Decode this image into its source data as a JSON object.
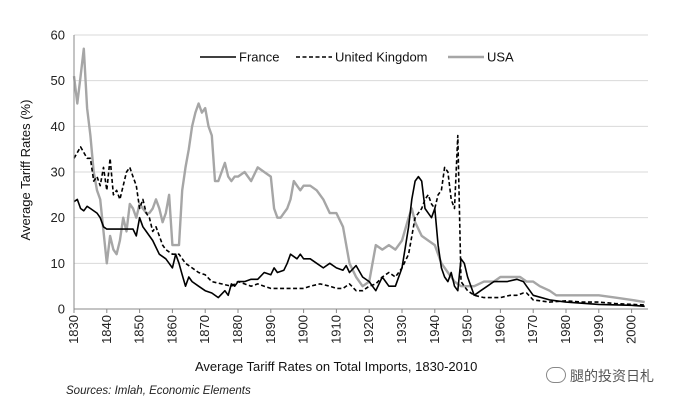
{
  "chart_data": {
    "type": "line",
    "title": "Average Tariff Rates on Total Imports, 1830-2010",
    "xlabel": "Average Tariff Rates on Total Imports, 1830-2010",
    "ylabel": "Average Tariff Rates (%)",
    "xlim": [
      1830,
      2005
    ],
    "ylim": [
      0,
      60
    ],
    "x_ticks": [
      1830,
      1840,
      1850,
      1860,
      1870,
      1880,
      1890,
      1900,
      1910,
      1920,
      1930,
      1940,
      1950,
      1960,
      1970,
      1980,
      1990,
      2000
    ],
    "y_ticks": [
      0,
      10,
      20,
      30,
      40,
      50,
      60
    ],
    "legend_position": "top-center",
    "series": [
      {
        "name": "France",
        "color": "#000000",
        "style": "solid",
        "points": [
          [
            1830,
            23.5
          ],
          [
            1831,
            24
          ],
          [
            1832,
            22
          ],
          [
            1833,
            21.5
          ],
          [
            1834,
            22.5
          ],
          [
            1835,
            22
          ],
          [
            1837,
            21
          ],
          [
            1838,
            20
          ],
          [
            1839,
            18
          ],
          [
            1840,
            17.5
          ],
          [
            1845,
            17.5
          ],
          [
            1848,
            17.5
          ],
          [
            1849,
            16
          ],
          [
            1850,
            20
          ],
          [
            1851,
            18
          ],
          [
            1852,
            17
          ],
          [
            1853,
            16
          ],
          [
            1854,
            15
          ],
          [
            1856,
            12
          ],
          [
            1858,
            11
          ],
          [
            1859,
            10
          ],
          [
            1860,
            9
          ],
          [
            1861,
            12
          ],
          [
            1862,
            10
          ],
          [
            1863,
            7.5
          ],
          [
            1864,
            5
          ],
          [
            1865,
            7
          ],
          [
            1866,
            6
          ],
          [
            1868,
            5
          ],
          [
            1870,
            4
          ],
          [
            1872,
            3.5
          ],
          [
            1874,
            2.5
          ],
          [
            1876,
            4
          ],
          [
            1877,
            3
          ],
          [
            1878,
            5.5
          ],
          [
            1879,
            5
          ],
          [
            1880,
            6
          ],
          [
            1882,
            6
          ],
          [
            1884,
            6.5
          ],
          [
            1886,
            6.5
          ],
          [
            1888,
            8
          ],
          [
            1890,
            7.5
          ],
          [
            1891,
            9
          ],
          [
            1892,
            8
          ],
          [
            1894,
            8.5
          ],
          [
            1895,
            10
          ],
          [
            1896,
            12
          ],
          [
            1898,
            11
          ],
          [
            1899,
            12
          ],
          [
            1900,
            11
          ],
          [
            1902,
            11
          ],
          [
            1904,
            10
          ],
          [
            1906,
            9
          ],
          [
            1908,
            10
          ],
          [
            1910,
            9
          ],
          [
            1912,
            8.5
          ],
          [
            1913,
            9.5
          ],
          [
            1914,
            8
          ],
          [
            1916,
            9.5
          ],
          [
            1918,
            7
          ],
          [
            1920,
            6
          ],
          [
            1921,
            5
          ],
          [
            1922,
            4
          ],
          [
            1924,
            7
          ],
          [
            1926,
            5
          ],
          [
            1928,
            5
          ],
          [
            1930,
            9
          ],
          [
            1932,
            18
          ],
          [
            1933,
            24
          ],
          [
            1934,
            28
          ],
          [
            1935,
            29
          ],
          [
            1936,
            28
          ],
          [
            1937,
            22
          ],
          [
            1938,
            21
          ],
          [
            1939,
            20
          ],
          [
            1940,
            22
          ],
          [
            1941,
            14
          ],
          [
            1942,
            9
          ],
          [
            1943,
            7
          ],
          [
            1944,
            6
          ],
          [
            1945,
            8
          ],
          [
            1946,
            5
          ],
          [
            1947,
            4
          ],
          [
            1948,
            11
          ],
          [
            1949,
            10
          ],
          [
            1950,
            7
          ],
          [
            1952,
            3
          ],
          [
            1954,
            4
          ],
          [
            1956,
            5
          ],
          [
            1958,
            6
          ],
          [
            1960,
            6
          ],
          [
            1962,
            6
          ],
          [
            1965,
            6.5
          ],
          [
            1967,
            6
          ],
          [
            1968,
            5
          ],
          [
            1970,
            3
          ],
          [
            1975,
            2
          ],
          [
            1980,
            1.5
          ],
          [
            1990,
            1
          ],
          [
            2000,
            0.8
          ],
          [
            2004,
            0.6
          ]
        ]
      },
      {
        "name": "United Kingdom",
        "color": "#000000",
        "style": "dashed",
        "points": [
          [
            1830,
            33
          ],
          [
            1832,
            35.5
          ],
          [
            1834,
            33
          ],
          [
            1835,
            33
          ],
          [
            1836,
            28
          ],
          [
            1837,
            29
          ],
          [
            1838,
            27
          ],
          [
            1839,
            31
          ],
          [
            1840,
            26
          ],
          [
            1841,
            33
          ],
          [
            1842,
            25
          ],
          [
            1843,
            26
          ],
          [
            1844,
            24
          ],
          [
            1845,
            27
          ],
          [
            1846,
            30
          ],
          [
            1847,
            31
          ],
          [
            1848,
            29
          ],
          [
            1849,
            27
          ],
          [
            1850,
            22
          ],
          [
            1851,
            24
          ],
          [
            1852,
            21
          ],
          [
            1853,
            20
          ],
          [
            1854,
            17
          ],
          [
            1855,
            18
          ],
          [
            1856,
            16
          ],
          [
            1857,
            14
          ],
          [
            1858,
            13
          ],
          [
            1860,
            12
          ],
          [
            1862,
            12
          ],
          [
            1864,
            10
          ],
          [
            1866,
            9
          ],
          [
            1868,
            8
          ],
          [
            1870,
            7.5
          ],
          [
            1872,
            6
          ],
          [
            1875,
            5.5
          ],
          [
            1878,
            5
          ],
          [
            1880,
            6
          ],
          [
            1882,
            5.5
          ],
          [
            1884,
            5
          ],
          [
            1886,
            5.5
          ],
          [
            1888,
            5
          ],
          [
            1890,
            4.5
          ],
          [
            1895,
            4.5
          ],
          [
            1900,
            4.5
          ],
          [
            1902,
            5
          ],
          [
            1905,
            5.5
          ],
          [
            1908,
            5
          ],
          [
            1910,
            4.5
          ],
          [
            1912,
            4.5
          ],
          [
            1914,
            5.5
          ],
          [
            1916,
            4
          ],
          [
            1918,
            4
          ],
          [
            1920,
            5
          ],
          [
            1922,
            5.5
          ],
          [
            1924,
            7
          ],
          [
            1926,
            8
          ],
          [
            1928,
            7
          ],
          [
            1930,
            9
          ],
          [
            1932,
            12
          ],
          [
            1934,
            20
          ],
          [
            1936,
            22
          ],
          [
            1937,
            24
          ],
          [
            1938,
            25
          ],
          [
            1939,
            23
          ],
          [
            1940,
            22
          ],
          [
            1941,
            25
          ],
          [
            1942,
            26
          ],
          [
            1943,
            31
          ],
          [
            1944,
            30
          ],
          [
            1945,
            24
          ],
          [
            1946,
            22
          ],
          [
            1947,
            38
          ],
          [
            1948,
            6
          ],
          [
            1949,
            5
          ],
          [
            1950,
            4
          ],
          [
            1952,
            3
          ],
          [
            1955,
            2.5
          ],
          [
            1960,
            2.5
          ],
          [
            1963,
            3
          ],
          [
            1965,
            3
          ],
          [
            1967,
            3.5
          ],
          [
            1968,
            3.5
          ],
          [
            1970,
            2
          ],
          [
            1975,
            1.5
          ],
          [
            1980,
            1.8
          ],
          [
            1985,
            1.5
          ],
          [
            1990,
            1.5
          ],
          [
            1995,
            1.2
          ],
          [
            2000,
            1
          ],
          [
            2004,
            0.9
          ]
        ]
      },
      {
        "name": "USA",
        "color": "#a6a6a6",
        "style": "solid",
        "points": [
          [
            1830,
            51
          ],
          [
            1831,
            45
          ],
          [
            1832,
            51
          ],
          [
            1833,
            57
          ],
          [
            1834,
            44
          ],
          [
            1835,
            38
          ],
          [
            1836,
            30
          ],
          [
            1837,
            26
          ],
          [
            1838,
            24
          ],
          [
            1839,
            17
          ],
          [
            1840,
            10
          ],
          [
            1841,
            16
          ],
          [
            1842,
            13
          ],
          [
            1843,
            12
          ],
          [
            1844,
            15
          ],
          [
            1845,
            20
          ],
          [
            1846,
            17
          ],
          [
            1847,
            23
          ],
          [
            1848,
            22
          ],
          [
            1849,
            20
          ],
          [
            1850,
            23
          ],
          [
            1851,
            22
          ],
          [
            1852,
            21
          ],
          [
            1853,
            21
          ],
          [
            1854,
            22
          ],
          [
            1855,
            24
          ],
          [
            1856,
            22
          ],
          [
            1857,
            19
          ],
          [
            1858,
            21
          ],
          [
            1859,
            25
          ],
          [
            1860,
            14
          ],
          [
            1861,
            14
          ],
          [
            1862,
            14
          ],
          [
            1863,
            26
          ],
          [
            1864,
            31
          ],
          [
            1865,
            35
          ],
          [
            1866,
            40
          ],
          [
            1867,
            43
          ],
          [
            1868,
            45
          ],
          [
            1869,
            43
          ],
          [
            1870,
            44
          ],
          [
            1871,
            40
          ],
          [
            1872,
            38
          ],
          [
            1873,
            28
          ],
          [
            1874,
            28
          ],
          [
            1875,
            30
          ],
          [
            1876,
            32
          ],
          [
            1877,
            29
          ],
          [
            1878,
            28
          ],
          [
            1879,
            29
          ],
          [
            1880,
            29
          ],
          [
            1882,
            30
          ],
          [
            1884,
            28
          ],
          [
            1886,
            31
          ],
          [
            1888,
            30
          ],
          [
            1890,
            29
          ],
          [
            1891,
            22
          ],
          [
            1892,
            20
          ],
          [
            1893,
            20
          ],
          [
            1894,
            21
          ],
          [
            1895,
            22
          ],
          [
            1896,
            24
          ],
          [
            1897,
            28
          ],
          [
            1898,
            27
          ],
          [
            1899,
            26
          ],
          [
            1900,
            27
          ],
          [
            1902,
            27
          ],
          [
            1904,
            26
          ],
          [
            1906,
            24
          ],
          [
            1908,
            21
          ],
          [
            1910,
            21
          ],
          [
            1912,
            18
          ],
          [
            1914,
            10
          ],
          [
            1916,
            7
          ],
          [
            1918,
            5
          ],
          [
            1920,
            6
          ],
          [
            1922,
            14
          ],
          [
            1924,
            13
          ],
          [
            1926,
            14
          ],
          [
            1928,
            13
          ],
          [
            1930,
            15
          ],
          [
            1932,
            20
          ],
          [
            1933,
            22
          ],
          [
            1934,
            19
          ],
          [
            1936,
            16
          ],
          [
            1938,
            15
          ],
          [
            1940,
            14
          ],
          [
            1942,
            10
          ],
          [
            1944,
            8
          ],
          [
            1946,
            6
          ],
          [
            1948,
            5
          ],
          [
            1950,
            5
          ],
          [
            1952,
            5
          ],
          [
            1955,
            6
          ],
          [
            1958,
            6
          ],
          [
            1960,
            7
          ],
          [
            1963,
            7
          ],
          [
            1966,
            7
          ],
          [
            1968,
            6
          ],
          [
            1970,
            6
          ],
          [
            1972,
            5
          ],
          [
            1975,
            4
          ],
          [
            1977,
            3
          ],
          [
            1980,
            3
          ],
          [
            1985,
            3
          ],
          [
            1990,
            3
          ],
          [
            1995,
            2.5
          ],
          [
            2000,
            2
          ],
          [
            2004,
            1.5
          ]
        ]
      }
    ]
  },
  "caption": "Average Tariff Rates on Total Imports, 1830-2010",
  "source": "Sources: Imlah, Economic Elements",
  "watermark": "腿的投资日札"
}
